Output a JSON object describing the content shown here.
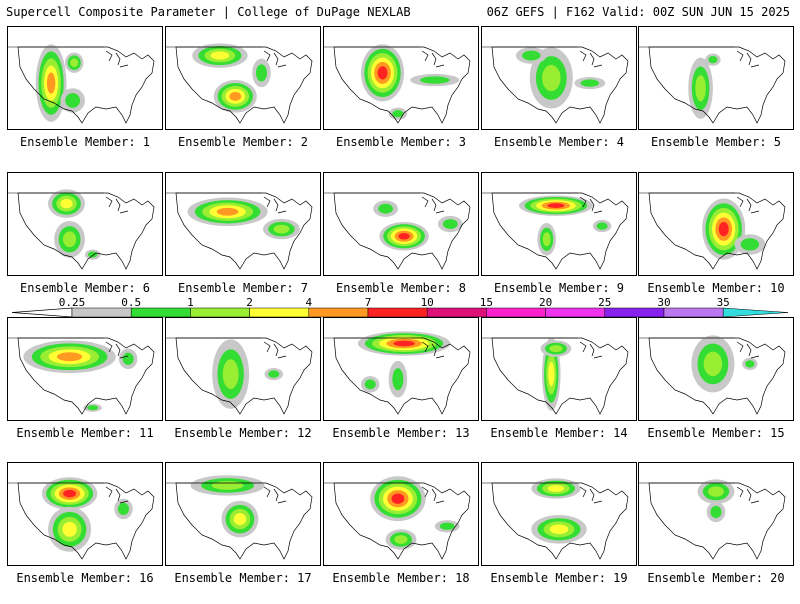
{
  "header": {
    "title": "Supercell Composite Parameter | College of DuPage NEXLAB",
    "run_info": "06Z GEFS | F162 Valid: 00Z SUN JUN 15 2025"
  },
  "member_label_prefix": "Ensemble Member: ",
  "members": [
    {
      "label": "Ensemble Member: 1",
      "blobs": [
        [
          0.28,
          0.55,
          0.1,
          0.38,
          0.6
        ],
        [
          0.43,
          0.35,
          0.06,
          0.1,
          0.3
        ],
        [
          0.42,
          0.72,
          0.08,
          0.12,
          0.2
        ]
      ]
    },
    {
      "label": "Ensemble Member: 2",
      "blobs": [
        [
          0.35,
          0.28,
          0.18,
          0.12,
          0.5
        ],
        [
          0.45,
          0.68,
          0.14,
          0.16,
          0.6
        ],
        [
          0.62,
          0.45,
          0.06,
          0.14,
          0.2
        ]
      ]
    },
    {
      "label": "Ensemble Member: 3",
      "blobs": [
        [
          0.38,
          0.45,
          0.14,
          0.28,
          0.7
        ],
        [
          0.72,
          0.52,
          0.16,
          0.06,
          0.2
        ],
        [
          0.48,
          0.85,
          0.06,
          0.06,
          0.1
        ]
      ]
    },
    {
      "label": "Ensemble Member: 4",
      "blobs": [
        [
          0.45,
          0.5,
          0.14,
          0.3,
          0.4
        ],
        [
          0.32,
          0.28,
          0.1,
          0.08,
          0.2
        ],
        [
          0.7,
          0.55,
          0.1,
          0.06,
          0.1
        ]
      ]
    },
    {
      "label": "Ensemble Member: 5",
      "blobs": [
        [
          0.4,
          0.6,
          0.08,
          0.3,
          0.3
        ],
        [
          0.48,
          0.32,
          0.05,
          0.06,
          0.1
        ]
      ]
    },
    {
      "label": "Ensemble Member: 6",
      "blobs": [
        [
          0.38,
          0.3,
          0.12,
          0.14,
          0.5
        ],
        [
          0.4,
          0.65,
          0.1,
          0.18,
          0.4
        ],
        [
          0.55,
          0.8,
          0.05,
          0.05,
          0.1
        ]
      ]
    },
    {
      "label": "Ensemble Member: 7",
      "blobs": [
        [
          0.4,
          0.38,
          0.26,
          0.14,
          0.6
        ],
        [
          0.75,
          0.55,
          0.12,
          0.1,
          0.3
        ]
      ]
    },
    {
      "label": "Ensemble Member: 8",
      "blobs": [
        [
          0.52,
          0.62,
          0.16,
          0.14,
          0.8
        ],
        [
          0.4,
          0.35,
          0.08,
          0.08,
          0.2
        ],
        [
          0.82,
          0.5,
          0.08,
          0.08,
          0.2
        ]
      ]
    },
    {
      "label": "Ensemble Member: 9",
      "blobs": [
        [
          0.48,
          0.32,
          0.24,
          0.1,
          0.7
        ],
        [
          0.42,
          0.65,
          0.06,
          0.16,
          0.3
        ],
        [
          0.78,
          0.52,
          0.06,
          0.06,
          0.1
        ]
      ]
    },
    {
      "label": "Ensemble Member: 10",
      "blobs": [
        [
          0.55,
          0.55,
          0.14,
          0.3,
          0.8
        ],
        [
          0.72,
          0.7,
          0.1,
          0.1,
          0.2
        ]
      ]
    },
    {
      "label": "Ensemble Member: 11",
      "blobs": [
        [
          0.4,
          0.38,
          0.3,
          0.16,
          0.6
        ],
        [
          0.78,
          0.4,
          0.06,
          0.1,
          0.2
        ],
        [
          0.55,
          0.88,
          0.06,
          0.04,
          0.1
        ]
      ]
    },
    {
      "label": "Ensemble Member: 12",
      "blobs": [
        [
          0.42,
          0.55,
          0.12,
          0.34,
          0.4
        ],
        [
          0.7,
          0.55,
          0.06,
          0.06,
          0.1
        ]
      ]
    },
    {
      "label": "Ensemble Member: 13",
      "blobs": [
        [
          0.52,
          0.25,
          0.3,
          0.12,
          0.7
        ],
        [
          0.48,
          0.6,
          0.06,
          0.18,
          0.2
        ],
        [
          0.3,
          0.65,
          0.06,
          0.08,
          0.1
        ]
      ]
    },
    {
      "label": "Ensemble Member: 14",
      "blobs": [
        [
          0.45,
          0.55,
          0.06,
          0.36,
          0.5
        ],
        [
          0.48,
          0.3,
          0.1,
          0.08,
          0.3
        ]
      ]
    },
    {
      "label": "Ensemble Member: 15",
      "blobs": [
        [
          0.48,
          0.45,
          0.14,
          0.28,
          0.4
        ],
        [
          0.72,
          0.45,
          0.05,
          0.06,
          0.1
        ]
      ]
    },
    {
      "label": "Ensemble Member: 16",
      "blobs": [
        [
          0.4,
          0.3,
          0.18,
          0.16,
          0.7
        ],
        [
          0.4,
          0.65,
          0.14,
          0.22,
          0.5
        ],
        [
          0.75,
          0.45,
          0.06,
          0.1,
          0.2
        ]
      ]
    },
    {
      "label": "Ensemble Member: 17",
      "blobs": [
        [
          0.4,
          0.22,
          0.24,
          0.1,
          0.4
        ],
        [
          0.48,
          0.55,
          0.12,
          0.18,
          0.5
        ]
      ]
    },
    {
      "label": "Ensemble Member: 18",
      "blobs": [
        [
          0.48,
          0.35,
          0.18,
          0.22,
          0.7
        ],
        [
          0.5,
          0.75,
          0.1,
          0.1,
          0.3
        ],
        [
          0.8,
          0.62,
          0.08,
          0.06,
          0.1
        ]
      ]
    },
    {
      "label": "Ensemble Member: 19",
      "blobs": [
        [
          0.48,
          0.25,
          0.16,
          0.1,
          0.5
        ],
        [
          0.5,
          0.65,
          0.18,
          0.14,
          0.5
        ]
      ]
    },
    {
      "label": "Ensemble Member: 20",
      "blobs": [
        [
          0.5,
          0.28,
          0.12,
          0.12,
          0.4
        ],
        [
          0.5,
          0.48,
          0.06,
          0.1,
          0.2
        ]
      ]
    }
  ],
  "legend": {
    "ticks": [
      "0.25",
      "0.5",
      "1",
      "2",
      "4",
      "7",
      "10",
      "15",
      "20",
      "25",
      "30",
      "35"
    ],
    "colors": [
      "#c8c8c8",
      "#33dd33",
      "#99ee33",
      "#ffff33",
      "#ff9922",
      "#ff2222",
      "#dd1177",
      "#ff22cc",
      "#ee33ee",
      "#8822ee",
      "#bb77ee",
      "#33dddd"
    ]
  },
  "colors": {
    "land": "#ffffff",
    "outline": "#000000"
  }
}
